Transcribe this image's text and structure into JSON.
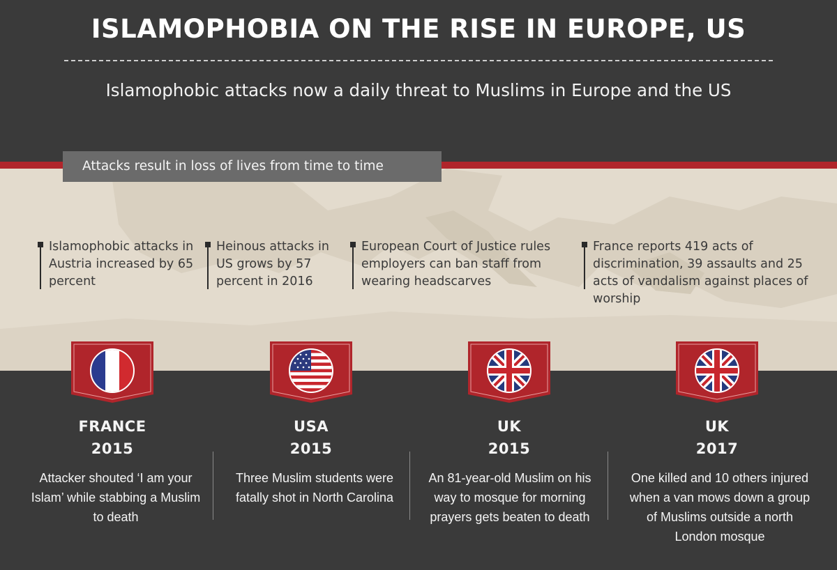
{
  "title": "ISLAMOPHOBIA ON THE RISE IN EUROPE, US",
  "subtitle": "Islamophobic attacks now a daily threat to Muslims in Europe and the US",
  "section_label": "Attacks result in loss of lives from time to time",
  "facts": [
    {
      "text": "Islamophobic attacks in Austria increased by 65 percent"
    },
    {
      "text": "Heinous attacks in US grows by 57 percent in 2016"
    },
    {
      "text": "European Court of Justice rules employers can ban staff from wearing headscarves"
    },
    {
      "text": "France reports 419 acts of discrimination, 39 assaults and 25 acts of vandalism against places of worship"
    }
  ],
  "cards": [
    {
      "country": "FRANCE",
      "year": "2015",
      "flag_icon": "france-flag-icon",
      "description": "Attacker shouted ‘I am your Islam’ while stabbing a Muslim to death"
    },
    {
      "country": "USA",
      "year": "2015",
      "flag_icon": "usa-flag-icon",
      "description": "Three Muslim students were fatally shot in North Carolina"
    },
    {
      "country": "UK",
      "year": "2015",
      "flag_icon": "uk-flag-icon",
      "description": "An 81-year-old Muslim on his way to mosque for morning prayers gets beaten to death"
    },
    {
      "country": "UK",
      "year": "2017",
      "flag_icon": "uk-flag-icon",
      "description": "One killed and 10 others injured when a van mows down a group of Muslims outside a north London mosque"
    }
  ],
  "colors": {
    "background": "#3a3a3a",
    "accent_red": "#b0252b",
    "map_beige": "#e3dbcd",
    "label_gray": "#6b6b6b"
  }
}
